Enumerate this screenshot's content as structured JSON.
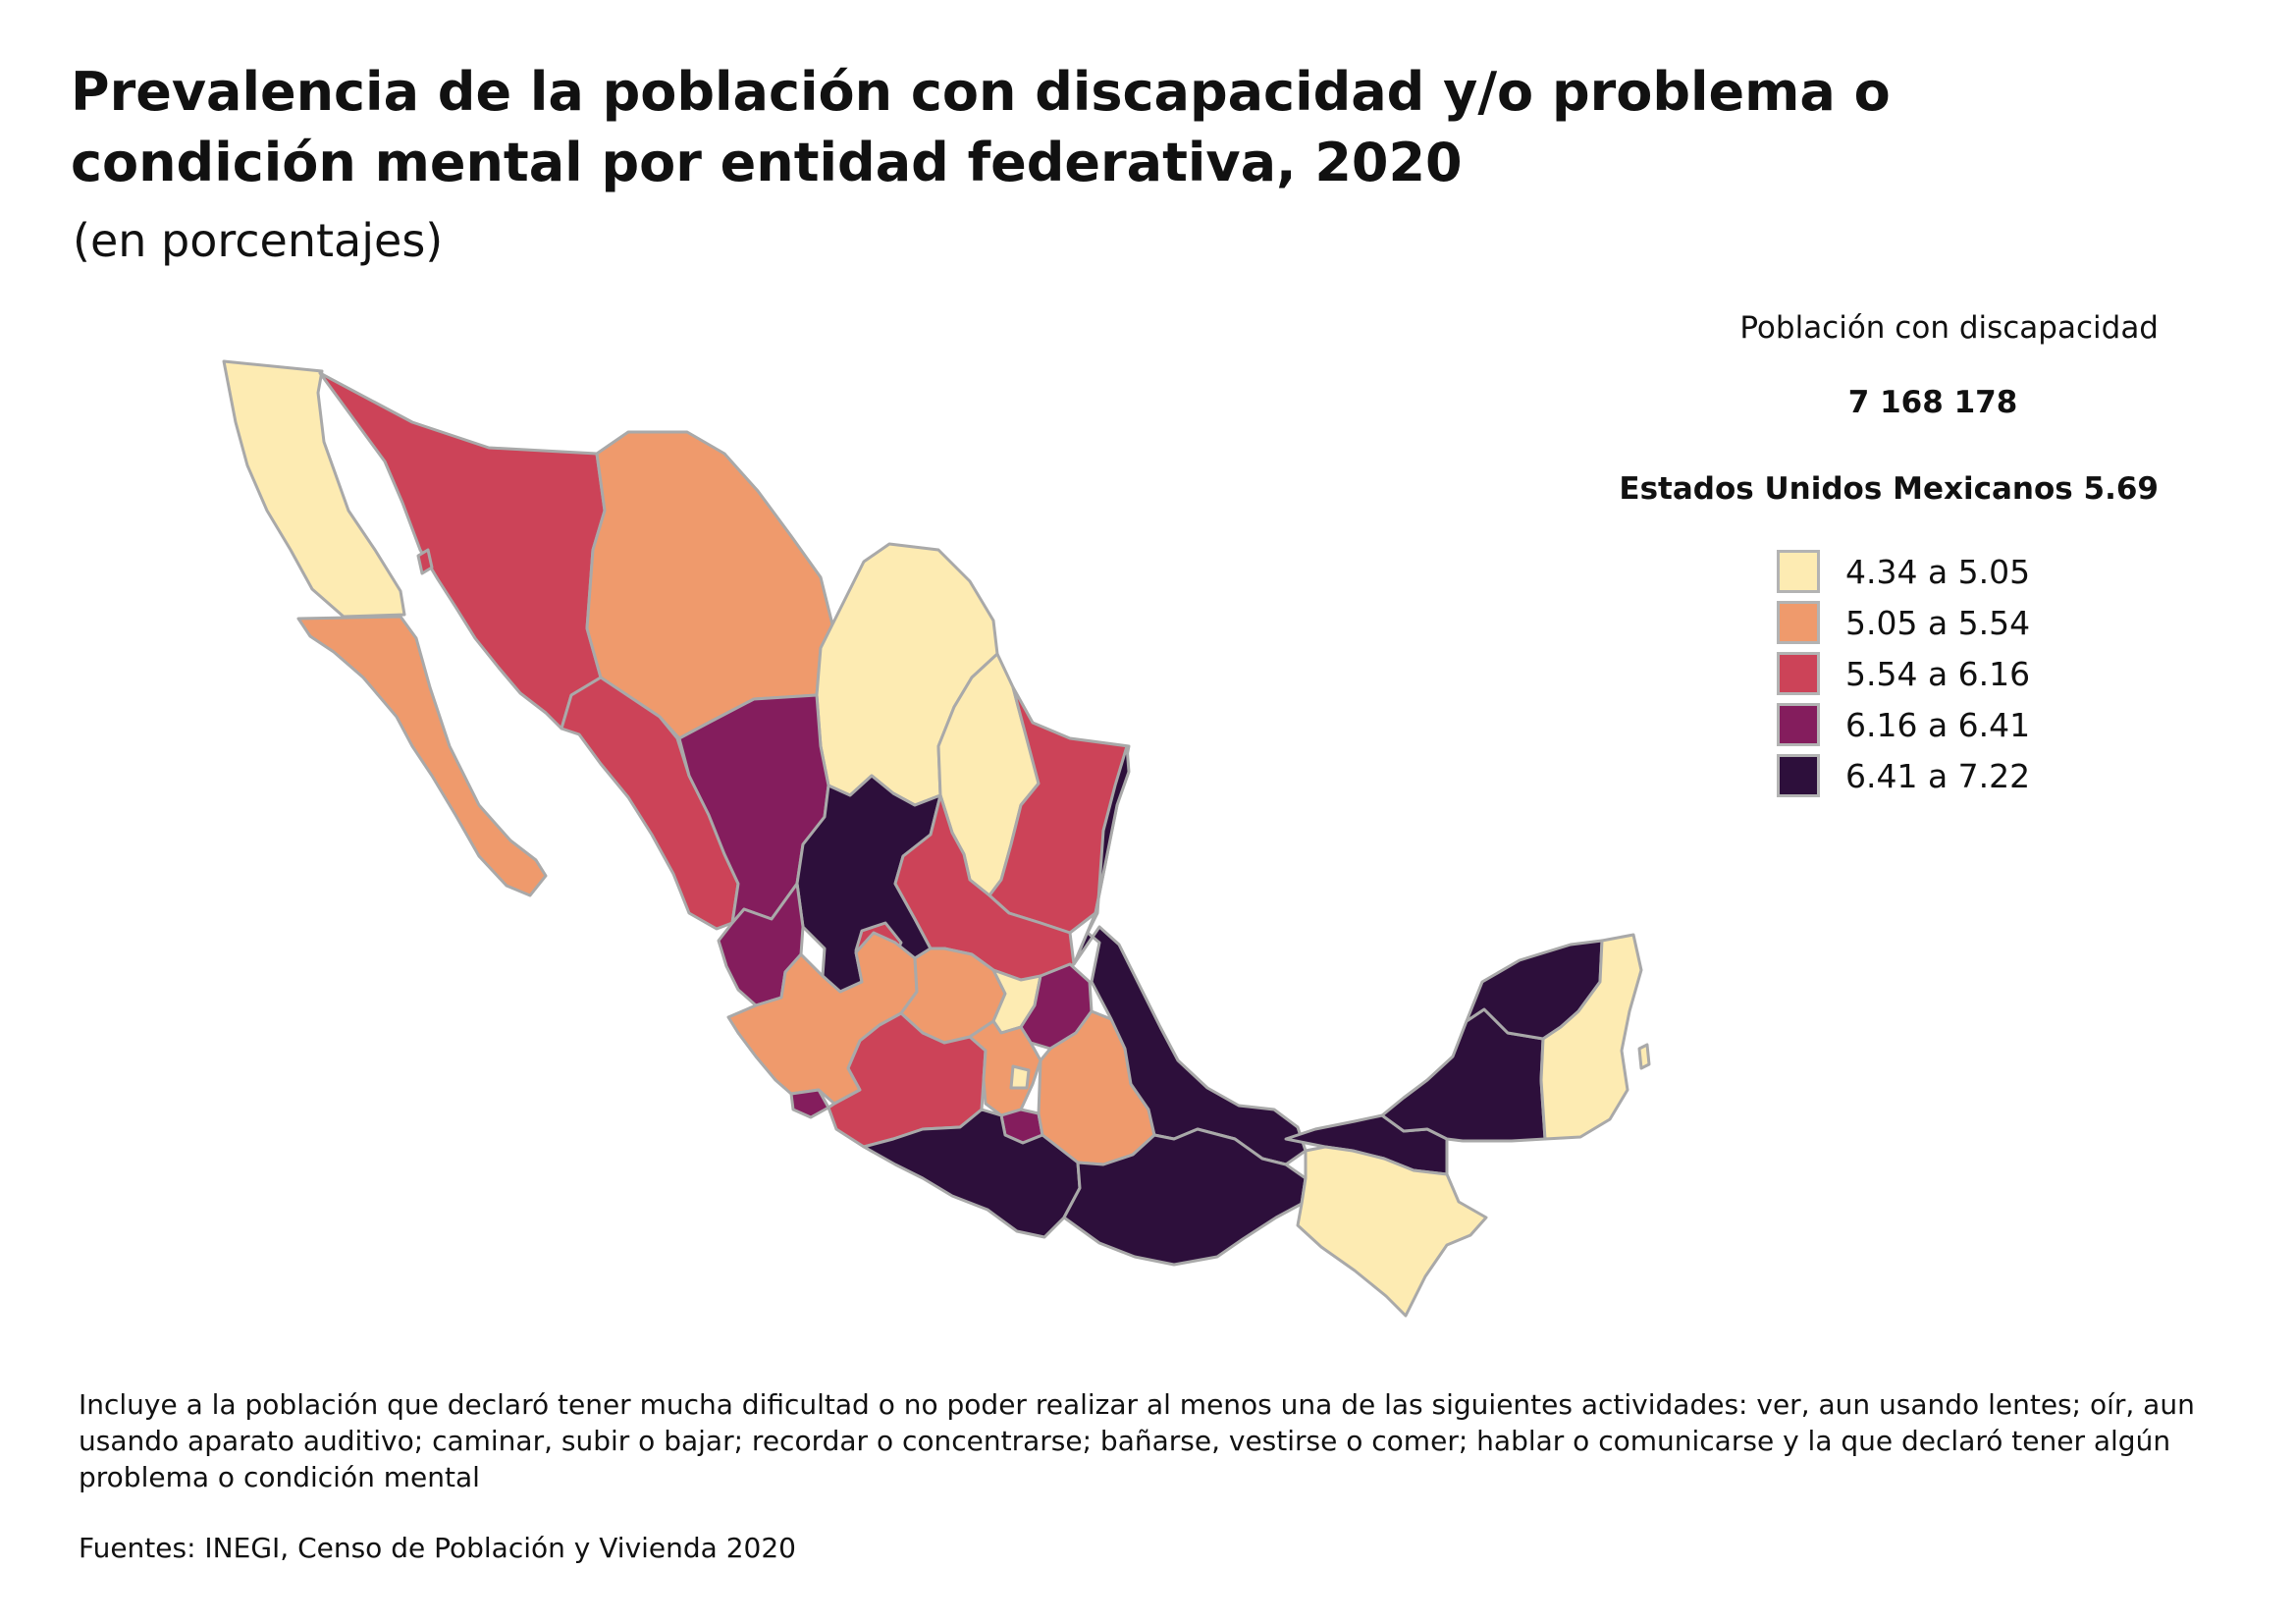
{
  "header": {
    "title_line1": "Prevalencia de la población con discapacidad y/o problema o",
    "title_line2": "condición mental por entidad federativa, 2020",
    "subtitle": "(en porcentajes)"
  },
  "legend": {
    "title": "Población con discapacidad",
    "total": "7 168 178",
    "national": "Estados Unidos Mexicanos 5.69",
    "bins": [
      {
        "label": "4.34 a 5.05",
        "color": "#fdebb2"
      },
      {
        "label": "5.05 a 5.54",
        "color": "#ef9a6c"
      },
      {
        "label": "5.54 a 6.16",
        "color": "#cc4358"
      },
      {
        "label": "6.16  a 6.41",
        "color": "#841d5d"
      },
      {
        "label": "6.41  a 7.22",
        "color": "#2d0f3b"
      }
    ]
  },
  "map": {
    "border_color": "#a9a9a9",
    "regions": [
      {
        "name": "baja-california",
        "bin": 0
      },
      {
        "name": "baja-california-sur",
        "bin": 1
      },
      {
        "name": "sonora",
        "bin": 2
      },
      {
        "name": "chihuahua",
        "bin": 1
      },
      {
        "name": "coahuila",
        "bin": 0
      },
      {
        "name": "nuevo-leon",
        "bin": 0
      },
      {
        "name": "tamaulipas",
        "bin": 2
      },
      {
        "name": "sinaloa",
        "bin": 2
      },
      {
        "name": "durango",
        "bin": 3
      },
      {
        "name": "zacatecas",
        "bin": 4
      },
      {
        "name": "nayarit",
        "bin": 3
      },
      {
        "name": "aguascalientes",
        "bin": 2
      },
      {
        "name": "jalisco",
        "bin": 1
      },
      {
        "name": "colima",
        "bin": 3
      },
      {
        "name": "san-luis-potosi",
        "bin": 2
      },
      {
        "name": "guanajuato",
        "bin": 1
      },
      {
        "name": "queretaro",
        "bin": 0
      },
      {
        "name": "hidalgo",
        "bin": 3
      },
      {
        "name": "michoacan",
        "bin": 2
      },
      {
        "name": "estado-de-mexico",
        "bin": 1
      },
      {
        "name": "ciudad-de-mexico",
        "bin": 0
      },
      {
        "name": "morelos",
        "bin": 3
      },
      {
        "name": "tlaxcala",
        "bin": 0
      },
      {
        "name": "puebla",
        "bin": 1
      },
      {
        "name": "veracruz",
        "bin": 4
      },
      {
        "name": "guerrero",
        "bin": 4
      },
      {
        "name": "oaxaca",
        "bin": 4
      },
      {
        "name": "tabasco",
        "bin": 4
      },
      {
        "name": "chiapas",
        "bin": 0
      },
      {
        "name": "campeche",
        "bin": 4
      },
      {
        "name": "yucatan",
        "bin": 4
      },
      {
        "name": "quintana-roo",
        "bin": 0
      }
    ]
  },
  "footnote": "Incluye a la población que declaró tener mucha dificultad o no poder realizar al menos una de las siguientes actividades: ver, aun usando lentes; oír, aun usando aparato auditivo; caminar, subir o bajar; recordar o concentrarse; bañarse, vestirse o comer; hablar o comunicarse y la que declaró tener algún problema o condición mental",
  "source": "Fuentes:  INEGI, Censo de Población y Vivienda 2020"
}
